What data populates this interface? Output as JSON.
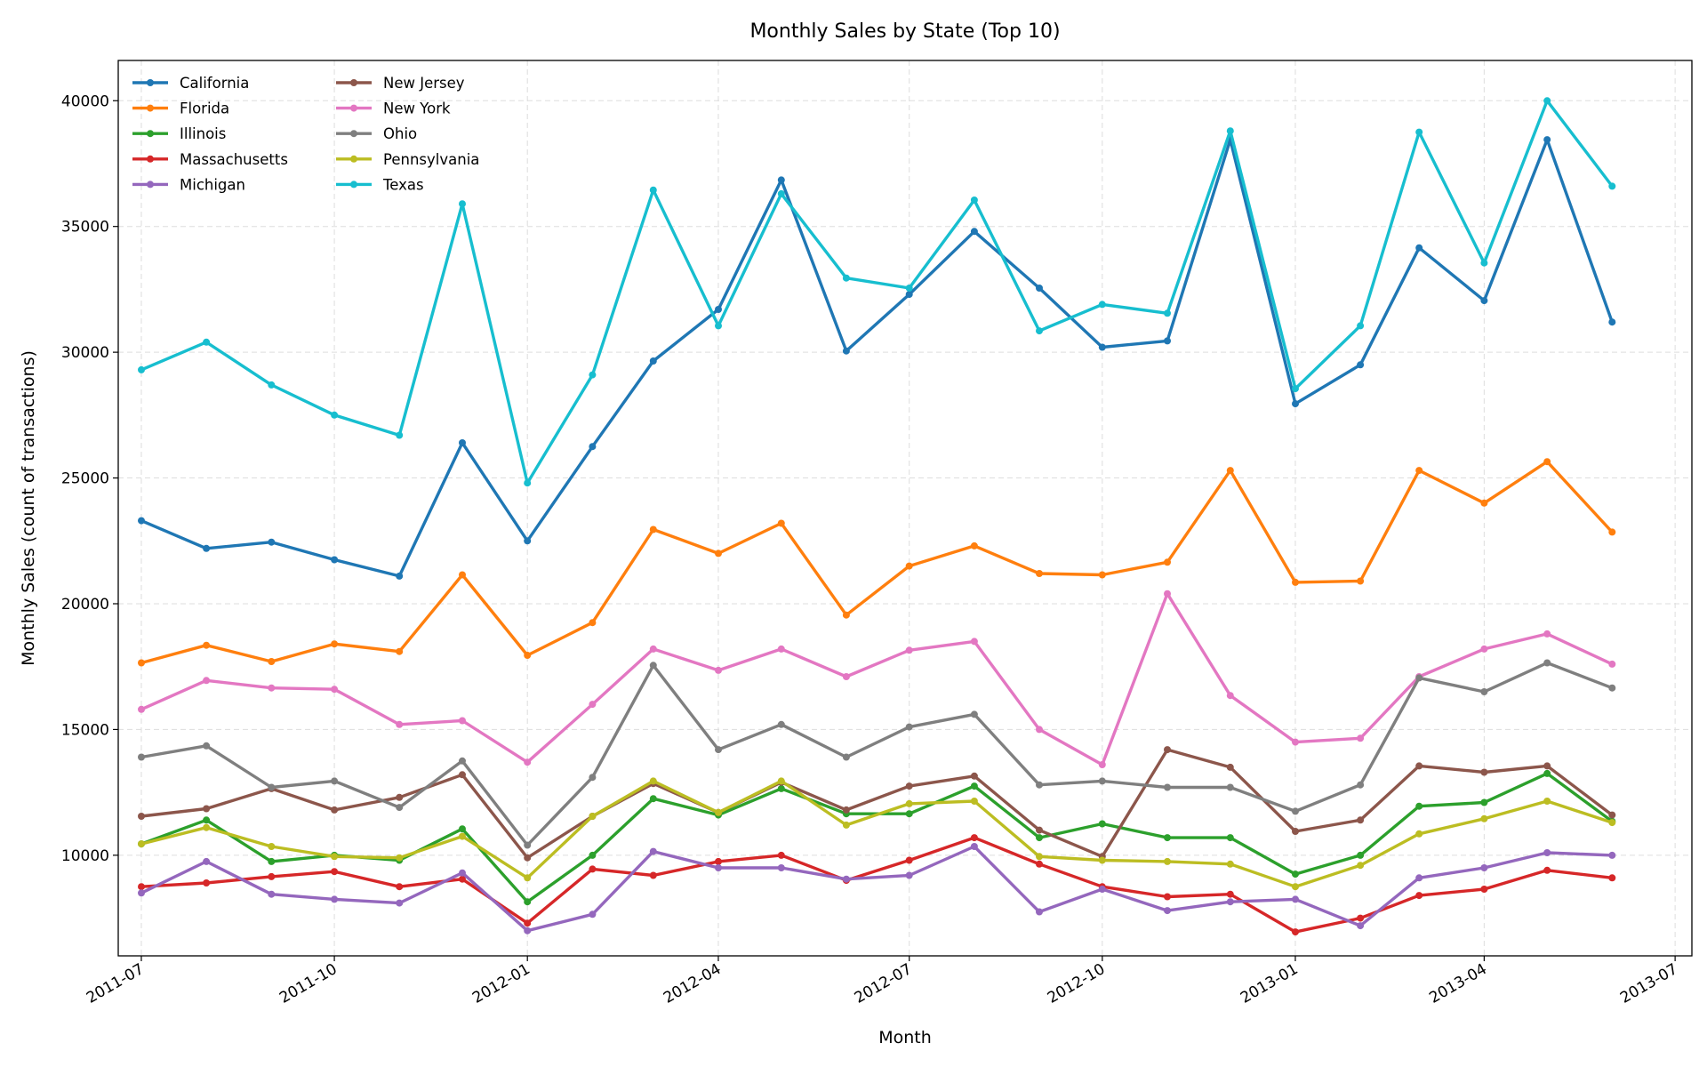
{
  "chart_data": {
    "type": "line",
    "title": "Monthly Sales by State (Top 10)",
    "xlabel": "Month",
    "ylabel": "Monthly Sales (count of transactions)",
    "grid": true,
    "legend_position": "top-left",
    "ylim": [
      6000,
      41600
    ],
    "xlim": [
      "2011-06-20",
      "2013-07-09"
    ],
    "yticks": [
      10000,
      15000,
      20000,
      25000,
      30000,
      35000,
      40000
    ],
    "xticks": [
      "2011-07",
      "2011-10",
      "2012-01",
      "2012-04",
      "2012-07",
      "2012-10",
      "2013-01",
      "2013-04",
      "2013-07"
    ],
    "x": [
      "2011-07",
      "2011-08",
      "2011-09",
      "2011-10",
      "2011-11",
      "2011-12",
      "2012-01",
      "2012-02",
      "2012-03",
      "2012-04",
      "2012-05",
      "2012-06",
      "2012-07",
      "2012-08",
      "2012-09",
      "2012-10",
      "2012-11",
      "2012-12",
      "2013-01",
      "2013-02",
      "2013-03",
      "2013-04",
      "2013-05",
      "2013-06"
    ],
    "series": [
      {
        "name": "California",
        "color": "#1f77b4",
        "values": [
          23300,
          22200,
          22450,
          21750,
          21100,
          26400,
          22500,
          26250,
          29650,
          31700,
          36850,
          30050,
          32300,
          34800,
          32550,
          30200,
          30450,
          38450,
          27950,
          29500,
          34150,
          32050,
          38450,
          31200
        ]
      },
      {
        "name": "Florida",
        "color": "#ff7f0e",
        "values": [
          17650,
          18350,
          17700,
          18400,
          18100,
          21150,
          17950,
          19250,
          22950,
          22000,
          23200,
          19550,
          21500,
          22300,
          21200,
          21150,
          21650,
          25300,
          20850,
          20900,
          25300,
          24000,
          25650,
          22850
        ]
      },
      {
        "name": "Illinois",
        "color": "#2ca02c",
        "values": [
          10450,
          11400,
          9750,
          10000,
          9800,
          11050,
          8150,
          10000,
          12250,
          11600,
          12650,
          11650,
          11650,
          12750,
          10700,
          11250,
          10700,
          10700,
          9250,
          10000,
          11950,
          12100,
          13250,
          11350
        ]
      },
      {
        "name": "Massachusetts",
        "color": "#d62728",
        "values": [
          8750,
          8900,
          9150,
          9350,
          8750,
          9050,
          7300,
          9450,
          9200,
          9750,
          10000,
          9000,
          9800,
          10700,
          9650,
          8750,
          8350,
          8450,
          6950,
          7500,
          8400,
          8650,
          9400,
          9100
        ]
      },
      {
        "name": "Michigan",
        "color": "#9467bd",
        "values": [
          8500,
          9750,
          8450,
          8250,
          8100,
          9300,
          7000,
          7650,
          10150,
          9500,
          9500,
          9050,
          9200,
          10350,
          7750,
          8650,
          7800,
          8150,
          8250,
          7200,
          9100,
          9500,
          10100,
          10000
        ]
      },
      {
        "name": "New Jersey",
        "color": "#8c564b",
        "values": [
          11550,
          11850,
          12650,
          11800,
          12300,
          13200,
          9900,
          11550,
          12850,
          11700,
          12900,
          11800,
          12750,
          13150,
          11000,
          9950,
          14200,
          13500,
          10950,
          11400,
          13550,
          13300,
          13550,
          11600
        ]
      },
      {
        "name": "New York",
        "color": "#e377c2",
        "values": [
          15800,
          16950,
          16650,
          16600,
          15200,
          15350,
          13700,
          16000,
          18200,
          17350,
          18200,
          17100,
          18150,
          18500,
          15000,
          13600,
          20400,
          16350,
          14500,
          14650,
          17100,
          18200,
          18800,
          17600
        ]
      },
      {
        "name": "Ohio",
        "color": "#7f7f7f",
        "values": [
          13900,
          14350,
          12700,
          12950,
          11900,
          13750,
          10400,
          13100,
          17550,
          14200,
          15200,
          13900,
          15100,
          15600,
          12800,
          12950,
          12700,
          12700,
          11750,
          12800,
          17050,
          16500,
          17650,
          16650
        ]
      },
      {
        "name": "Pennsylvania",
        "color": "#bcbd22",
        "values": [
          10450,
          11100,
          10350,
          9950,
          9900,
          10750,
          9100,
          11550,
          12950,
          11700,
          12950,
          11200,
          12050,
          12150,
          9950,
          9800,
          9750,
          9650,
          8750,
          9600,
          10850,
          11450,
          12150,
          11300
        ]
      },
      {
        "name": "Texas",
        "color": "#17becf",
        "values": [
          29300,
          30400,
          28700,
          27500,
          26700,
          35900,
          24800,
          29100,
          36450,
          31050,
          36300,
          32950,
          32550,
          36050,
          30850,
          31900,
          31550,
          38800,
          28550,
          31050,
          38750,
          33550,
          40000,
          36600
        ]
      }
    ]
  }
}
